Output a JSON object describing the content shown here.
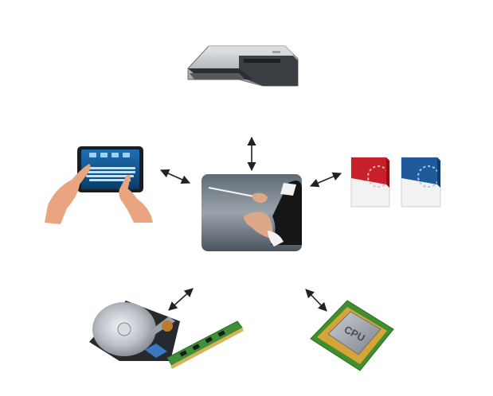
{
  "diagram": {
    "center": {
      "icon": "conductor-hands-baton"
    },
    "peripherals": [
      {
        "id": "printer",
        "icon": "inkjet-printer"
      },
      {
        "id": "tablet",
        "icon": "touch-tablet-keyboard"
      },
      {
        "id": "software",
        "icon": "software-boxes"
      },
      {
        "id": "storage-memory",
        "icon": "hard-drive-and-ram"
      },
      {
        "id": "cpu",
        "icon": "cpu-chip",
        "chip_label": "CPU"
      }
    ],
    "connector": "double-headed-arrow",
    "colors": {
      "background": "#ffffff",
      "arrow": "#222222",
      "center_bg": "#6f7a84",
      "software_red": "#c8202a",
      "software_blue": "#1f5b9a",
      "pcb_green": "#3f8f2f",
      "chip_gold": "#d7a437"
    }
  }
}
